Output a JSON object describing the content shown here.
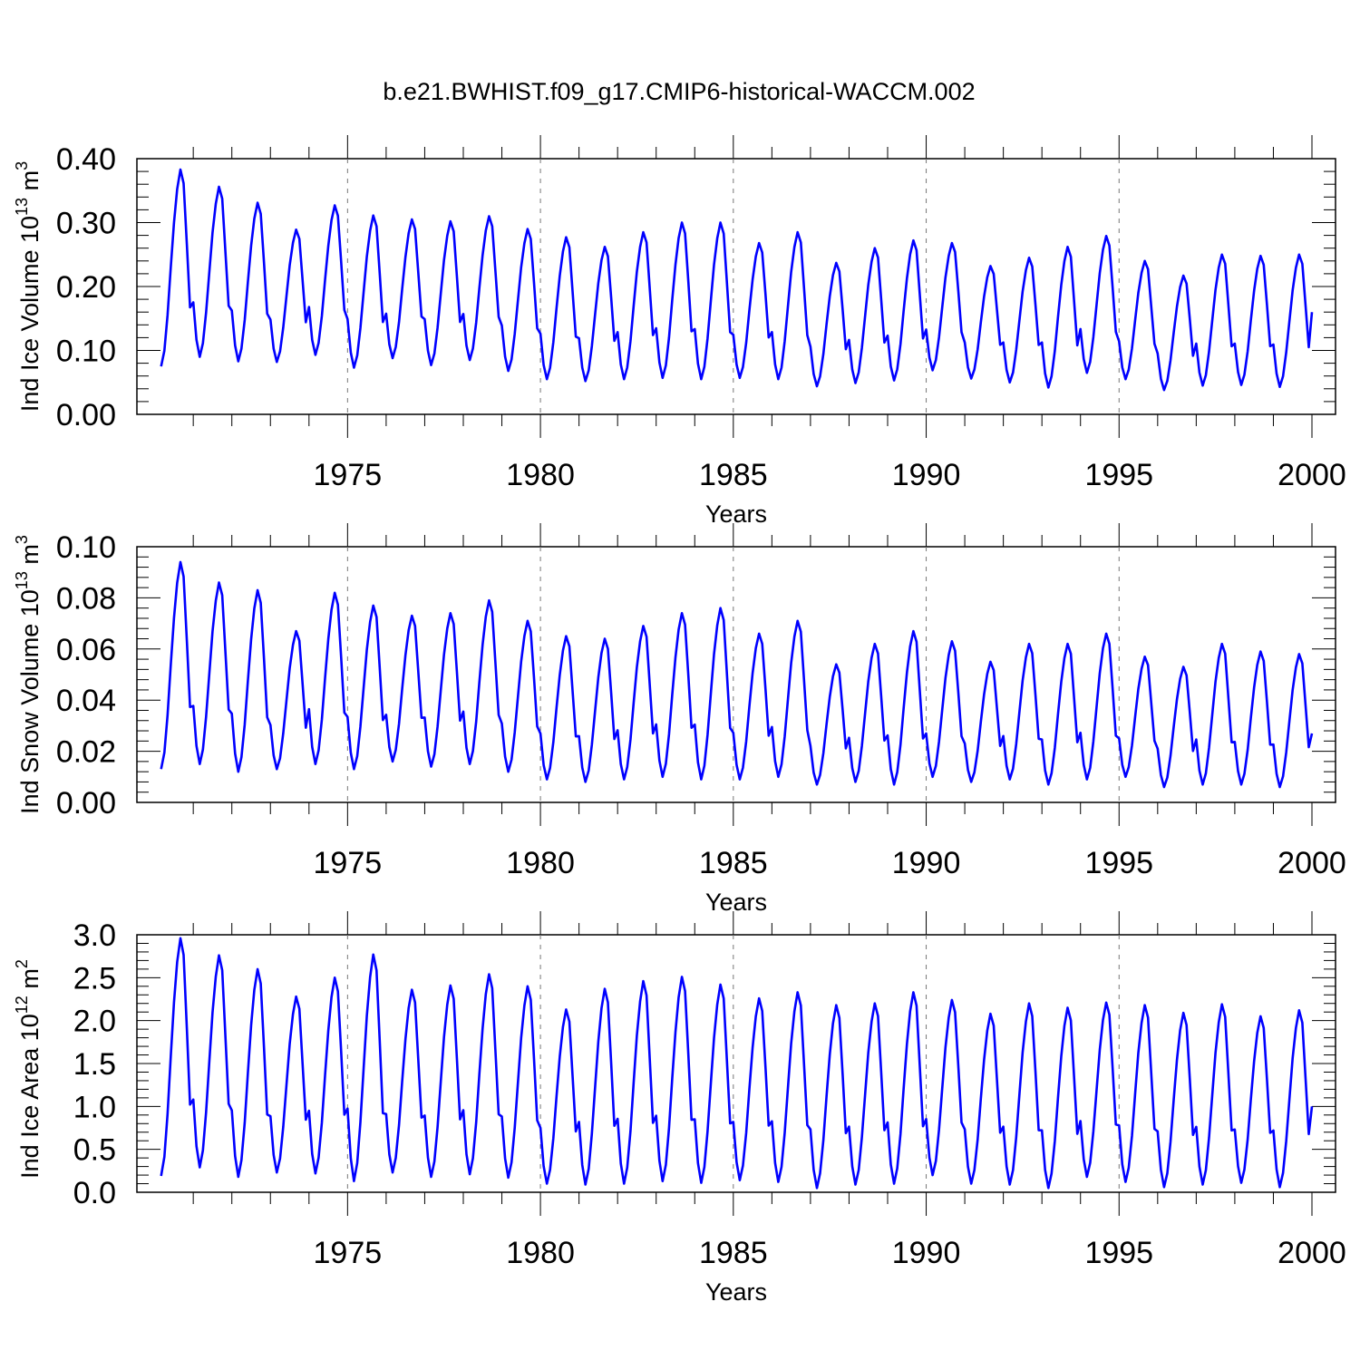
{
  "title": "b.e21.BWHIST.f09_g17.CMIP6-historical-WACCM.002",
  "line_color": "#0000ff",
  "chart_data": [
    {
      "type": "line",
      "ylabel_main": "Ind Ice Volume 10",
      "ylabel_sup": "13",
      "ylabel_unit": " m",
      "ylabel_unit_sup": "3",
      "xlabel": "Years",
      "xlim": [
        1970,
        2000
      ],
      "ylim": [
        0,
        0.4
      ],
      "yticks": [
        0,
        0.1,
        0.2,
        0.3,
        0.4
      ],
      "ytick_labels": [
        "0.00",
        "0.10",
        "0.20",
        "0.30",
        "0.40"
      ],
      "xticks": [
        1975,
        1980,
        1985,
        1990,
        1995,
        2000
      ],
      "xtick_labels": [
        "1975",
        "1980",
        "1985",
        "1990",
        "1995",
        "2000"
      ],
      "series": [
        {
          "name": "Ind Ice Volume",
          "start_year": 1970.0,
          "annual_max": [
            0.383,
            0.356,
            0.331,
            0.289,
            0.327,
            0.311,
            0.305,
            0.302,
            0.31,
            0.29,
            0.277,
            0.262,
            0.285,
            0.3,
            0.3,
            0.268,
            0.285,
            0.237,
            0.26,
            0.272,
            0.268,
            0.232,
            0.245,
            0.262,
            0.279,
            0.24,
            0.217,
            0.25,
            0.248,
            0.25
          ],
          "annual_min": [
            0.075,
            0.09,
            0.083,
            0.082,
            0.093,
            0.073,
            0.088,
            0.077,
            0.085,
            0.068,
            0.055,
            0.052,
            0.055,
            0.057,
            0.055,
            0.057,
            0.055,
            0.044,
            0.049,
            0.053,
            0.069,
            0.056,
            0.05,
            0.042,
            0.065,
            0.055,
            0.038,
            0.045,
            0.046,
            0.043
          ],
          "end_value": 0.16
        }
      ]
    },
    {
      "type": "line",
      "ylabel_main": "Ind Snow Volume 10",
      "ylabel_sup": "13",
      "ylabel_unit": " m",
      "ylabel_unit_sup": "3",
      "xlabel": "Years",
      "xlim": [
        1970,
        2000
      ],
      "ylim": [
        0,
        0.1
      ],
      "yticks": [
        0,
        0.02,
        0.04,
        0.06,
        0.08,
        0.1
      ],
      "ytick_labels": [
        "0.00",
        "0.02",
        "0.04",
        "0.06",
        "0.08",
        "0.10"
      ],
      "xticks": [
        1975,
        1980,
        1985,
        1990,
        1995,
        2000
      ],
      "xtick_labels": [
        "1975",
        "1980",
        "1985",
        "1990",
        "1995",
        "2000"
      ],
      "series": [
        {
          "name": "Ind Snow Volume",
          "start_year": 1970.0,
          "annual_max": [
            0.094,
            0.086,
            0.083,
            0.067,
            0.082,
            0.077,
            0.073,
            0.074,
            0.079,
            0.071,
            0.065,
            0.064,
            0.069,
            0.074,
            0.076,
            0.066,
            0.071,
            0.054,
            0.062,
            0.067,
            0.063,
            0.055,
            0.062,
            0.062,
            0.066,
            0.057,
            0.053,
            0.062,
            0.059,
            0.058
          ],
          "annual_min": [
            0.013,
            0.015,
            0.012,
            0.013,
            0.015,
            0.013,
            0.016,
            0.014,
            0.015,
            0.012,
            0.009,
            0.008,
            0.009,
            0.01,
            0.009,
            0.009,
            0.01,
            0.007,
            0.008,
            0.007,
            0.01,
            0.008,
            0.009,
            0.007,
            0.009,
            0.01,
            0.006,
            0.007,
            0.007,
            0.006
          ],
          "end_value": 0.027
        }
      ]
    },
    {
      "type": "line",
      "ylabel_main": "Ind Ice Area 10",
      "ylabel_sup": "12",
      "ylabel_unit": " m",
      "ylabel_unit_sup": "2",
      "xlabel": "Years",
      "xlim": [
        1970,
        2000
      ],
      "ylim": [
        0,
        3.0
      ],
      "yticks": [
        0,
        0.5,
        1.0,
        1.5,
        2.0,
        2.5,
        3.0
      ],
      "ytick_labels": [
        "0.0",
        "0.5",
        "1.0",
        "1.5",
        "2.0",
        "2.5",
        "3.0"
      ],
      "xticks": [
        1975,
        1980,
        1985,
        1990,
        1995,
        2000
      ],
      "xtick_labels": [
        "1975",
        "1980",
        "1985",
        "1990",
        "1995",
        "2000"
      ],
      "series": [
        {
          "name": "Ind Ice Area",
          "start_year": 1970.0,
          "annual_max": [
            2.96,
            2.76,
            2.6,
            2.28,
            2.5,
            2.77,
            2.36,
            2.41,
            2.54,
            2.4,
            2.13,
            2.37,
            2.46,
            2.51,
            2.42,
            2.26,
            2.33,
            2.18,
            2.2,
            2.33,
            2.24,
            2.08,
            2.2,
            2.15,
            2.21,
            2.18,
            2.09,
            2.19,
            2.05,
            2.12
          ],
          "annual_min": [
            0.19,
            0.29,
            0.18,
            0.23,
            0.22,
            0.13,
            0.23,
            0.18,
            0.21,
            0.17,
            0.1,
            0.09,
            0.1,
            0.13,
            0.11,
            0.14,
            0.12,
            0.05,
            0.09,
            0.1,
            0.2,
            0.1,
            0.09,
            0.05,
            0.18,
            0.12,
            0.06,
            0.09,
            0.11,
            0.06
          ],
          "end_value": 1.0
        }
      ]
    }
  ]
}
